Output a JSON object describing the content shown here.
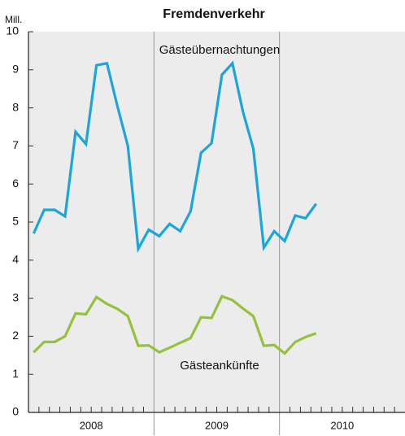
{
  "chart_data": {
    "type": "line",
    "title": "Fremdenverkehr",
    "y_label": "Mill.",
    "categories": [
      null,
      null,
      null,
      null,
      null,
      null,
      null,
      null,
      null,
      null,
      null,
      null,
      null,
      null,
      null,
      null,
      null,
      null,
      null,
      null,
      null,
      null,
      null,
      null,
      null,
      null,
      null,
      null,
      null,
      null,
      null,
      null,
      null,
      null,
      null,
      null
    ],
    "year_labels": [
      "2008",
      "2009",
      "2010"
    ],
    "series": [
      {
        "name": "Gästeübernachtungen",
        "color": "#1aa6dc",
        "values": [
          4.7,
          5.32,
          5.32,
          5.15,
          7.37,
          7.05,
          9.12,
          9.17,
          8.05,
          7.0,
          4.3,
          4.8,
          4.63,
          4.95,
          4.76,
          5.28,
          6.82,
          7.07,
          8.87,
          9.17,
          7.9,
          6.93,
          4.33,
          4.76,
          4.5,
          5.17,
          5.1,
          5.48,
          null,
          null,
          null,
          null,
          null,
          null,
          null,
          null
        ]
      },
      {
        "name": "Gästeankünfte",
        "color": "#95c13d",
        "values": [
          1.58,
          1.85,
          1.85,
          2.0,
          2.6,
          2.58,
          3.03,
          2.85,
          2.72,
          2.53,
          1.75,
          1.76,
          1.58,
          1.7,
          1.83,
          1.95,
          2.5,
          2.48,
          3.05,
          2.95,
          2.73,
          2.53,
          1.75,
          1.77,
          1.55,
          1.85,
          1.98,
          2.08,
          null,
          null,
          null,
          null,
          null,
          null,
          null,
          null
        ]
      }
    ],
    "ylim": [
      0,
      10
    ],
    "yticks": [
      0,
      1,
      2,
      3,
      4,
      5,
      6,
      7,
      8,
      9,
      10
    ]
  }
}
